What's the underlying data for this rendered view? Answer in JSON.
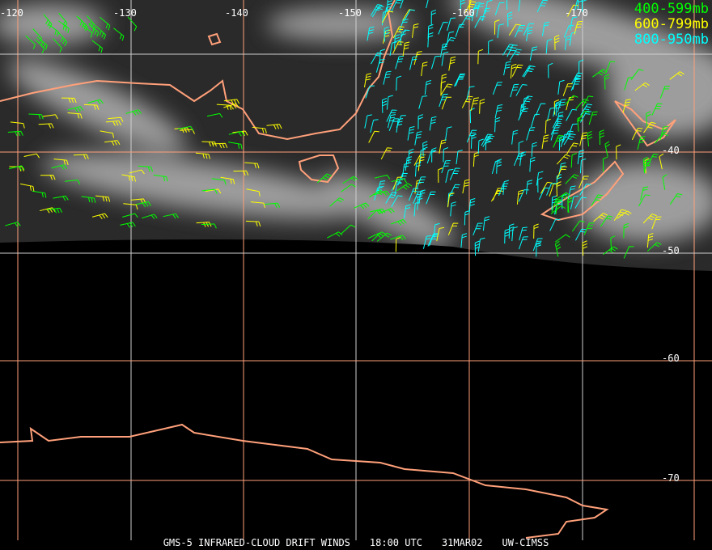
{
  "longitude_labels": [
    "-120",
    "-130",
    "-140",
    "-150",
    "-160",
    "-170"
  ],
  "latitude_labels": [
    "-40",
    "-50",
    "-60",
    "-70"
  ],
  "legend": [
    {
      "label": "400-599mb",
      "color": "#00ff00"
    },
    {
      "label": "600-799mb",
      "color": "#ffff00"
    },
    {
      "label": "800-950mb",
      "color": "#00ffff"
    }
  ],
  "footer": {
    "product": "GMS-5 INFRARED-CLOUD DRIFT WINDS",
    "time": "18:00 UTC",
    "date": "31MAR02",
    "source": "UW-CIMSS"
  },
  "colors": {
    "coastline": "#ffa07a",
    "grid": "#ffa07a",
    "grid_alt": "#d0d0d0",
    "background": "#000000"
  }
}
